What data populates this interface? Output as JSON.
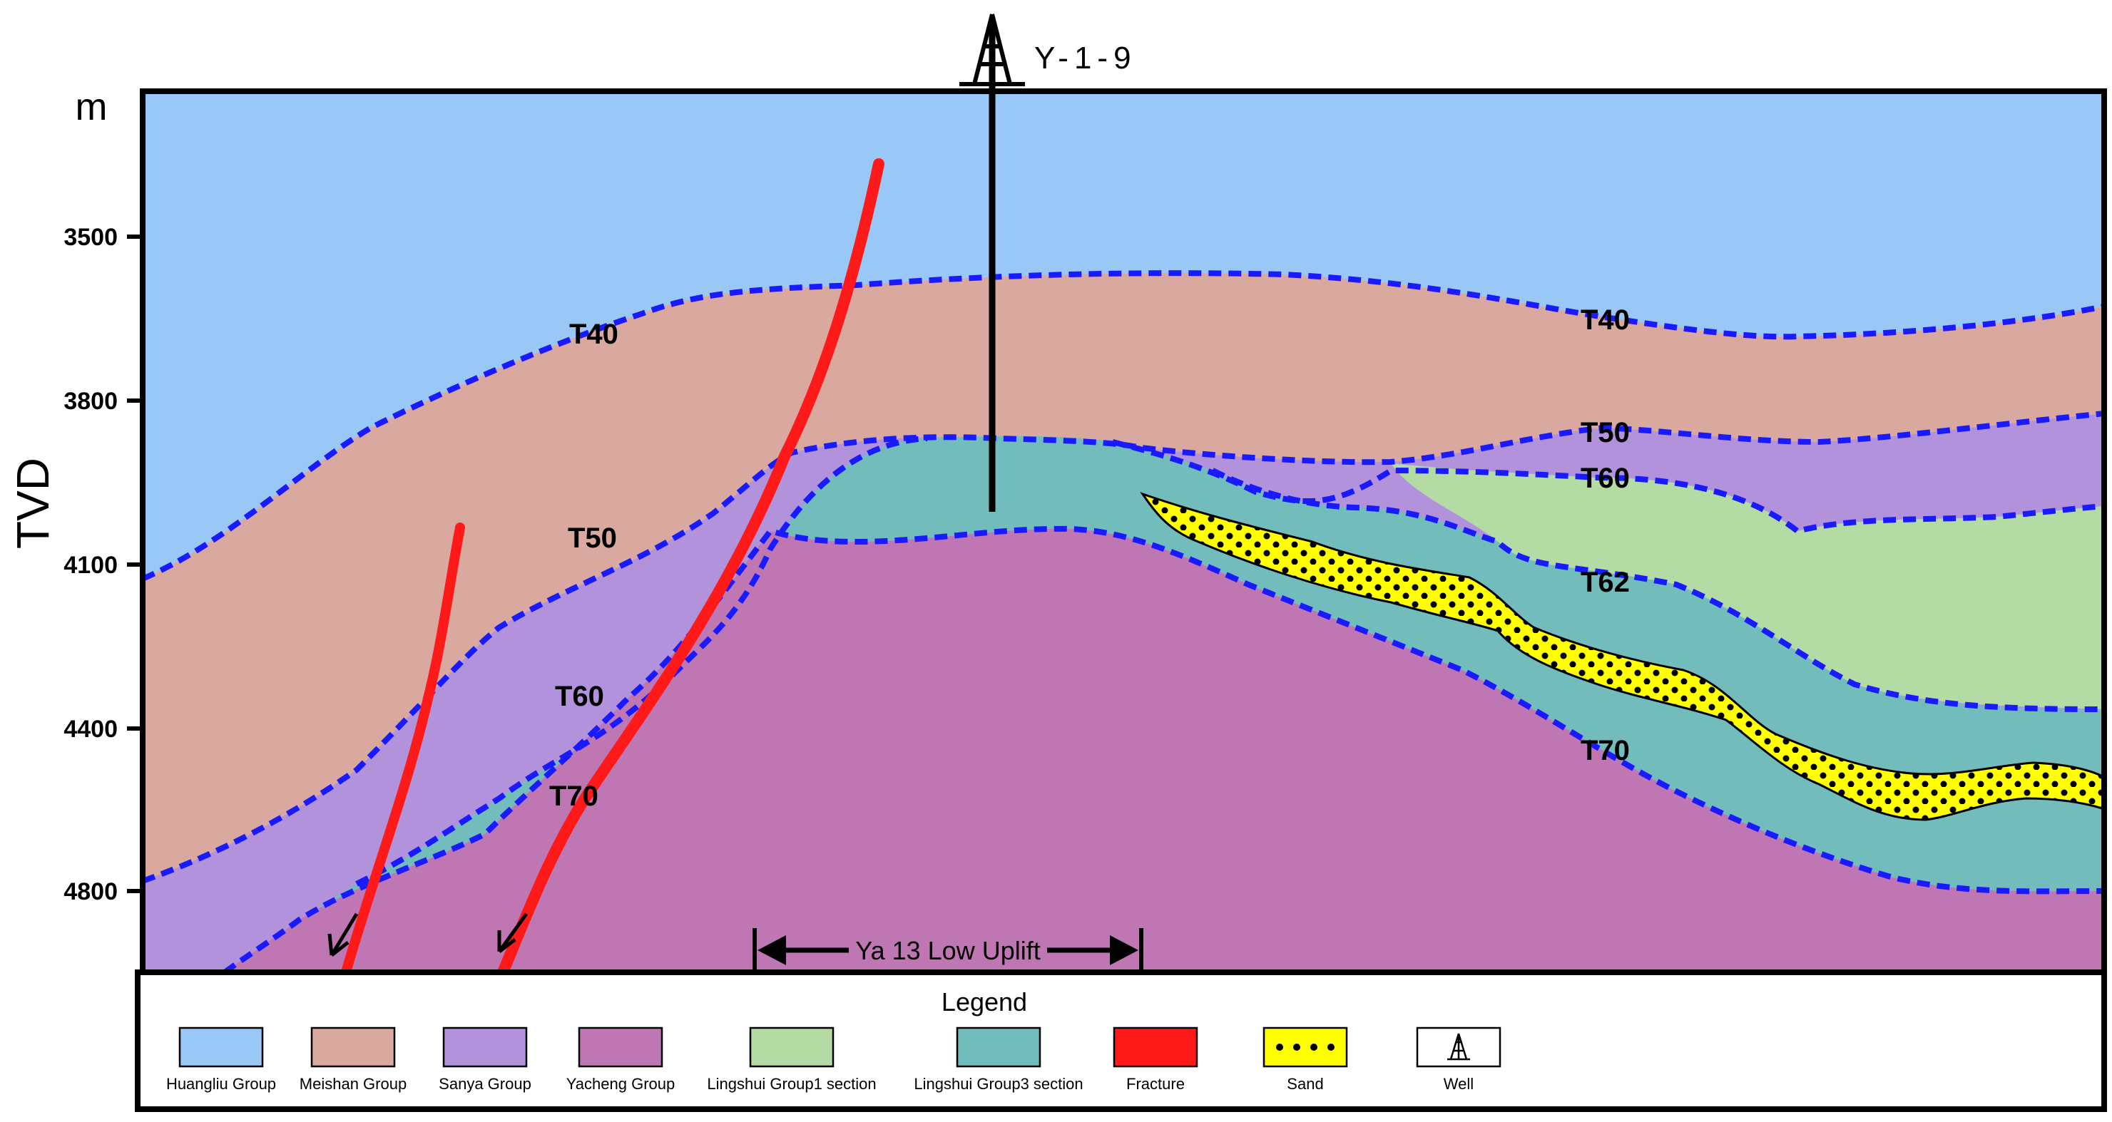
{
  "axis": {
    "unit": "m",
    "title": "TVD",
    "ticks": [
      "3500",
      "3800",
      "4100",
      "4400",
      "4800"
    ]
  },
  "well": {
    "name": "Y-1-9",
    "icon": "well-derrick-icon"
  },
  "horizons": {
    "left": [
      "T40",
      "T50",
      "T60",
      "T70"
    ],
    "right": [
      "T40",
      "T50",
      "T60",
      "T62",
      "T70"
    ]
  },
  "annotation": {
    "uplift": "Ya 13 Low Uplift"
  },
  "legend": {
    "title": "Legend",
    "items": [
      {
        "label": "Huangliu Group",
        "color": "#99c8f6",
        "kind": "fill"
      },
      {
        "label": "Meishan Group",
        "color": "#d9a89f",
        "kind": "fill"
      },
      {
        "label": "Sanya Group",
        "color": "#b192db",
        "kind": "fill"
      },
      {
        "label": "Yacheng Group",
        "color": "#bf77b4",
        "kind": "fill"
      },
      {
        "label": "Lingshui Group1 section",
        "color": "#b3dba3",
        "kind": "fill"
      },
      {
        "label": "Lingshui Group3 section",
        "color": "#73bcbc",
        "kind": "fill"
      },
      {
        "label": "Fracture",
        "color": "#ff1a1a",
        "kind": "fracture"
      },
      {
        "label": "Sand",
        "color": "#ffff00",
        "kind": "sand"
      },
      {
        "label": "Well",
        "color": "#ffffff",
        "kind": "well"
      }
    ]
  },
  "colors": {
    "horizon_line": "#1a1aff",
    "fault": "#ff1a1a",
    "frame": "#000000"
  }
}
